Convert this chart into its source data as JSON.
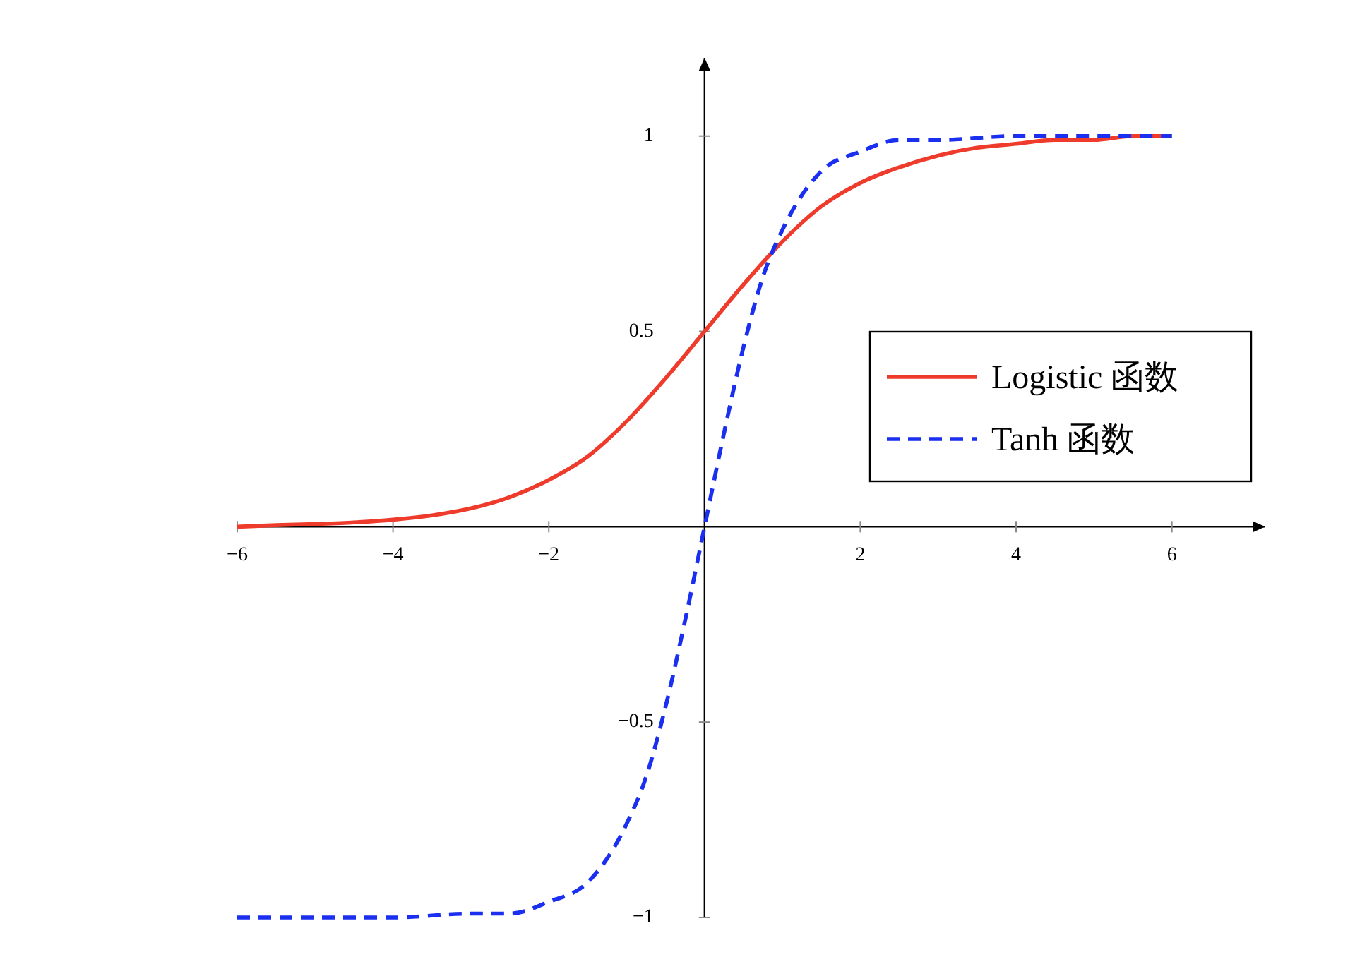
{
  "chart_data": {
    "type": "line",
    "xlim": [
      -6,
      7.2
    ],
    "ylim": [
      -1,
      1.2
    ],
    "xticks": [
      {
        "value": -6,
        "label": "−6"
      },
      {
        "value": -4,
        "label": "−4"
      },
      {
        "value": -2,
        "label": "−2"
      },
      2,
      4,
      6
    ],
    "yticks": [
      {
        "value": -1,
        "label": "−1"
      },
      {
        "value": -0.5,
        "label": "−0.5"
      },
      0.5,
      1
    ],
    "grid": false,
    "legend": "right",
    "series": [
      {
        "name": "Logistic 函数",
        "color": "#ee3b2b",
        "line_style": "solid",
        "x": [
          -6,
          -5.5,
          -5,
          -4.5,
          -4,
          -3.5,
          -3,
          -2.5,
          -2,
          -1.5,
          -1,
          -0.5,
          0,
          0.5,
          1,
          1.5,
          2,
          2.5,
          3,
          3.5,
          4,
          4.5,
          5,
          5.5,
          6
        ],
        "values": [
          0,
          0.004,
          0.007,
          0.011,
          0.018,
          0.029,
          0.047,
          0.076,
          0.12,
          0.18,
          0.27,
          0.38,
          0.5,
          0.62,
          0.73,
          0.82,
          0.88,
          0.92,
          0.95,
          0.97,
          0.98,
          0.99,
          0.99,
          1,
          1
        ]
      },
      {
        "name": "Tanh 函数",
        "color": "#1a2ff0",
        "line_style": "dashed",
        "x": [
          -6,
          -4,
          -3,
          -2.5,
          -2,
          -1.5,
          -1,
          -0.75,
          -0.5,
          -0.25,
          0,
          0.25,
          0.5,
          0.75,
          1,
          1.5,
          2,
          2.5,
          3,
          4,
          6
        ],
        "values": [
          -1,
          -1,
          -0.99,
          -0.99,
          -0.96,
          -0.91,
          -0.76,
          -0.64,
          -0.46,
          -0.24,
          0,
          0.24,
          0.46,
          0.64,
          0.76,
          0.91,
          0.96,
          0.99,
          0.99,
          1,
          1
        ]
      }
    ]
  }
}
